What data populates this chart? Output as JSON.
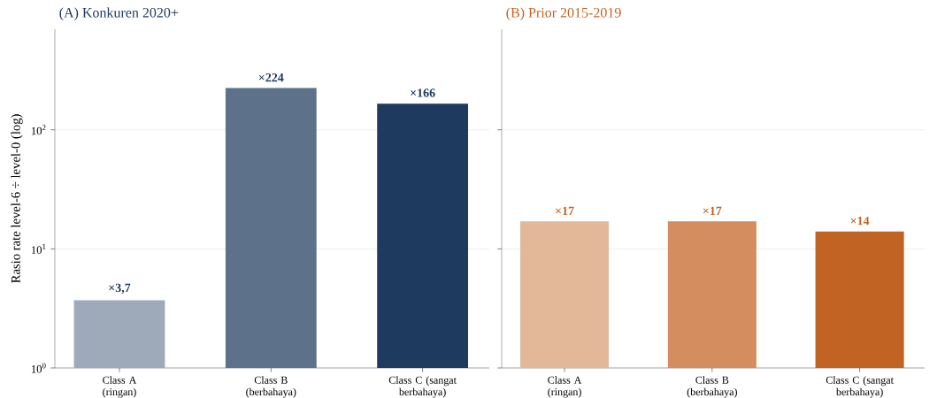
{
  "chart_data": [
    {
      "type": "bar",
      "title": "(A) Konkuren 2020+",
      "ylabel": "Rasio rate level-6 ÷ level-0 (log)",
      "categories": [
        "Class A (ringan)",
        "Class B (berbahaya)",
        "Class C (sangat berbahaya)"
      ],
      "values": [
        3.7,
        224,
        166
      ],
      "colors": [
        "#9ea9b9",
        "#5d718b",
        "#1f3a5f"
      ],
      "value_labels": [
        "×3,7",
        "×224",
        "×166"
      ],
      "log": "y",
      "ylim": [
        1,
        700
      ],
      "yticks": [
        {
          "value": 1,
          "label": "10$^{0}$"
        },
        {
          "value": 10,
          "label": "10$^{1}$"
        },
        {
          "value": 100,
          "label": "10$^{2}$"
        }
      ],
      "grid": "y"
    },
    {
      "type": "bar",
      "title": "(B) Prior 2015-2019",
      "categories": [
        "Class A (ringan)",
        "Class B (berbahaya)",
        "Class C (sangat berbahaya)"
      ],
      "values": [
        17,
        17,
        14
      ],
      "colors": [
        "#e3b899",
        "#d38d5e",
        "#c16322"
      ],
      "value_labels": [
        "×17",
        "×17",
        "×14"
      ],
      "log": "y",
      "ylim": [
        1,
        700
      ],
      "grid": "y",
      "tick_labels": "x",
      "yticks": [
        {
          "value": 1,
          "label": null
        },
        {
          "value": 10,
          "label": null
        },
        {
          "value": 100,
          "label": null
        }
      ]
    }
  ]
}
